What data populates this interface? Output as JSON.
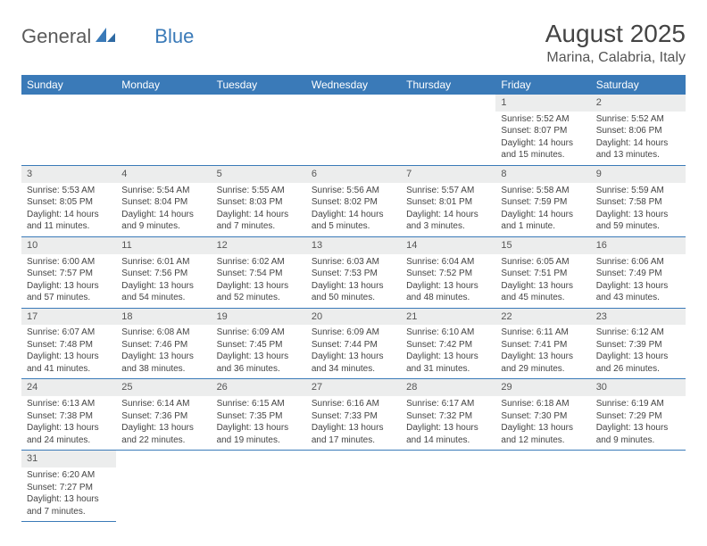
{
  "logo": {
    "part1": "General",
    "part2": "Blue"
  },
  "title": "August 2025",
  "location": "Marina, Calabria, Italy",
  "colors": {
    "header_bg": "#3a7ab8",
    "header_text": "#ffffff",
    "daynum_bg": "#eceded",
    "cell_border": "#3a7ab8",
    "body_text": "#444444"
  },
  "weekdays": [
    "Sunday",
    "Monday",
    "Tuesday",
    "Wednesday",
    "Thursday",
    "Friday",
    "Saturday"
  ],
  "weeks": [
    [
      {
        "day": "",
        "sunrise": "",
        "sunset": "",
        "daylight": ""
      },
      {
        "day": "",
        "sunrise": "",
        "sunset": "",
        "daylight": ""
      },
      {
        "day": "",
        "sunrise": "",
        "sunset": "",
        "daylight": ""
      },
      {
        "day": "",
        "sunrise": "",
        "sunset": "",
        "daylight": ""
      },
      {
        "day": "",
        "sunrise": "",
        "sunset": "",
        "daylight": ""
      },
      {
        "day": "1",
        "sunrise": "Sunrise: 5:52 AM",
        "sunset": "Sunset: 8:07 PM",
        "daylight": "Daylight: 14 hours and 15 minutes."
      },
      {
        "day": "2",
        "sunrise": "Sunrise: 5:52 AM",
        "sunset": "Sunset: 8:06 PM",
        "daylight": "Daylight: 14 hours and 13 minutes."
      }
    ],
    [
      {
        "day": "3",
        "sunrise": "Sunrise: 5:53 AM",
        "sunset": "Sunset: 8:05 PM",
        "daylight": "Daylight: 14 hours and 11 minutes."
      },
      {
        "day": "4",
        "sunrise": "Sunrise: 5:54 AM",
        "sunset": "Sunset: 8:04 PM",
        "daylight": "Daylight: 14 hours and 9 minutes."
      },
      {
        "day": "5",
        "sunrise": "Sunrise: 5:55 AM",
        "sunset": "Sunset: 8:03 PM",
        "daylight": "Daylight: 14 hours and 7 minutes."
      },
      {
        "day": "6",
        "sunrise": "Sunrise: 5:56 AM",
        "sunset": "Sunset: 8:02 PM",
        "daylight": "Daylight: 14 hours and 5 minutes."
      },
      {
        "day": "7",
        "sunrise": "Sunrise: 5:57 AM",
        "sunset": "Sunset: 8:01 PM",
        "daylight": "Daylight: 14 hours and 3 minutes."
      },
      {
        "day": "8",
        "sunrise": "Sunrise: 5:58 AM",
        "sunset": "Sunset: 7:59 PM",
        "daylight": "Daylight: 14 hours and 1 minute."
      },
      {
        "day": "9",
        "sunrise": "Sunrise: 5:59 AM",
        "sunset": "Sunset: 7:58 PM",
        "daylight": "Daylight: 13 hours and 59 minutes."
      }
    ],
    [
      {
        "day": "10",
        "sunrise": "Sunrise: 6:00 AM",
        "sunset": "Sunset: 7:57 PM",
        "daylight": "Daylight: 13 hours and 57 minutes."
      },
      {
        "day": "11",
        "sunrise": "Sunrise: 6:01 AM",
        "sunset": "Sunset: 7:56 PM",
        "daylight": "Daylight: 13 hours and 54 minutes."
      },
      {
        "day": "12",
        "sunrise": "Sunrise: 6:02 AM",
        "sunset": "Sunset: 7:54 PM",
        "daylight": "Daylight: 13 hours and 52 minutes."
      },
      {
        "day": "13",
        "sunrise": "Sunrise: 6:03 AM",
        "sunset": "Sunset: 7:53 PM",
        "daylight": "Daylight: 13 hours and 50 minutes."
      },
      {
        "day": "14",
        "sunrise": "Sunrise: 6:04 AM",
        "sunset": "Sunset: 7:52 PM",
        "daylight": "Daylight: 13 hours and 48 minutes."
      },
      {
        "day": "15",
        "sunrise": "Sunrise: 6:05 AM",
        "sunset": "Sunset: 7:51 PM",
        "daylight": "Daylight: 13 hours and 45 minutes."
      },
      {
        "day": "16",
        "sunrise": "Sunrise: 6:06 AM",
        "sunset": "Sunset: 7:49 PM",
        "daylight": "Daylight: 13 hours and 43 minutes."
      }
    ],
    [
      {
        "day": "17",
        "sunrise": "Sunrise: 6:07 AM",
        "sunset": "Sunset: 7:48 PM",
        "daylight": "Daylight: 13 hours and 41 minutes."
      },
      {
        "day": "18",
        "sunrise": "Sunrise: 6:08 AM",
        "sunset": "Sunset: 7:46 PM",
        "daylight": "Daylight: 13 hours and 38 minutes."
      },
      {
        "day": "19",
        "sunrise": "Sunrise: 6:09 AM",
        "sunset": "Sunset: 7:45 PM",
        "daylight": "Daylight: 13 hours and 36 minutes."
      },
      {
        "day": "20",
        "sunrise": "Sunrise: 6:09 AM",
        "sunset": "Sunset: 7:44 PM",
        "daylight": "Daylight: 13 hours and 34 minutes."
      },
      {
        "day": "21",
        "sunrise": "Sunrise: 6:10 AM",
        "sunset": "Sunset: 7:42 PM",
        "daylight": "Daylight: 13 hours and 31 minutes."
      },
      {
        "day": "22",
        "sunrise": "Sunrise: 6:11 AM",
        "sunset": "Sunset: 7:41 PM",
        "daylight": "Daylight: 13 hours and 29 minutes."
      },
      {
        "day": "23",
        "sunrise": "Sunrise: 6:12 AM",
        "sunset": "Sunset: 7:39 PM",
        "daylight": "Daylight: 13 hours and 26 minutes."
      }
    ],
    [
      {
        "day": "24",
        "sunrise": "Sunrise: 6:13 AM",
        "sunset": "Sunset: 7:38 PM",
        "daylight": "Daylight: 13 hours and 24 minutes."
      },
      {
        "day": "25",
        "sunrise": "Sunrise: 6:14 AM",
        "sunset": "Sunset: 7:36 PM",
        "daylight": "Daylight: 13 hours and 22 minutes."
      },
      {
        "day": "26",
        "sunrise": "Sunrise: 6:15 AM",
        "sunset": "Sunset: 7:35 PM",
        "daylight": "Daylight: 13 hours and 19 minutes."
      },
      {
        "day": "27",
        "sunrise": "Sunrise: 6:16 AM",
        "sunset": "Sunset: 7:33 PM",
        "daylight": "Daylight: 13 hours and 17 minutes."
      },
      {
        "day": "28",
        "sunrise": "Sunrise: 6:17 AM",
        "sunset": "Sunset: 7:32 PM",
        "daylight": "Daylight: 13 hours and 14 minutes."
      },
      {
        "day": "29",
        "sunrise": "Sunrise: 6:18 AM",
        "sunset": "Sunset: 7:30 PM",
        "daylight": "Daylight: 13 hours and 12 minutes."
      },
      {
        "day": "30",
        "sunrise": "Sunrise: 6:19 AM",
        "sunset": "Sunset: 7:29 PM",
        "daylight": "Daylight: 13 hours and 9 minutes."
      }
    ],
    [
      {
        "day": "31",
        "sunrise": "Sunrise: 6:20 AM",
        "sunset": "Sunset: 7:27 PM",
        "daylight": "Daylight: 13 hours and 7 minutes."
      },
      {
        "day": "",
        "sunrise": "",
        "sunset": "",
        "daylight": ""
      },
      {
        "day": "",
        "sunrise": "",
        "sunset": "",
        "daylight": ""
      },
      {
        "day": "",
        "sunrise": "",
        "sunset": "",
        "daylight": ""
      },
      {
        "day": "",
        "sunrise": "",
        "sunset": "",
        "daylight": ""
      },
      {
        "day": "",
        "sunrise": "",
        "sunset": "",
        "daylight": ""
      },
      {
        "day": "",
        "sunrise": "",
        "sunset": "",
        "daylight": ""
      }
    ]
  ]
}
